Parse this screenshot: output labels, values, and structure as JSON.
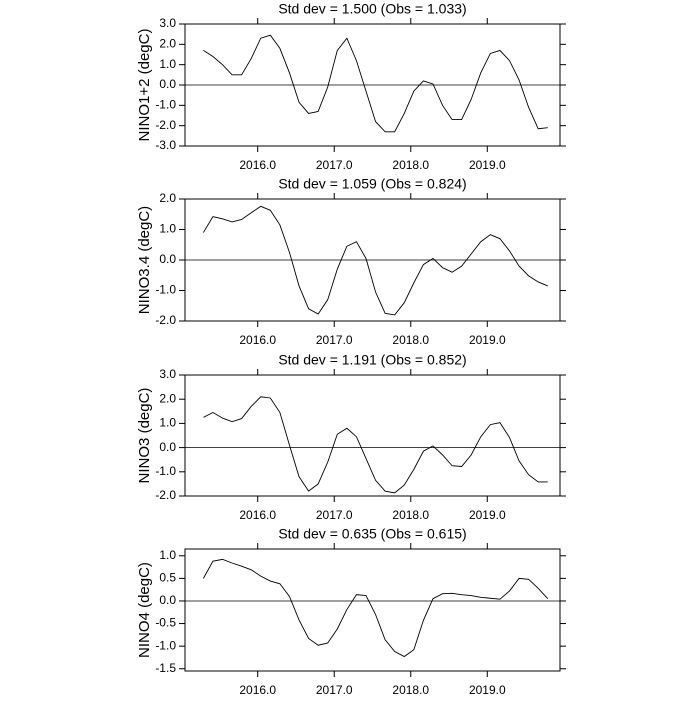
{
  "chart_data": [
    {
      "type": "line",
      "title": "Std dev = 1.500 (Obs = 1.033)",
      "y_label": "NINO1+2 (degC)",
      "color": "#000000",
      "x": [
        2015.29,
        2015.415,
        2015.54,
        2015.665,
        2015.79,
        2015.915,
        2016.04,
        2016.165,
        2016.29,
        2016.415,
        2016.54,
        2016.665,
        2016.79,
        2016.915,
        2017.04,
        2017.165,
        2017.29,
        2017.415,
        2017.54,
        2017.665,
        2017.79,
        2017.915,
        2018.04,
        2018.165,
        2018.29,
        2018.415,
        2018.54,
        2018.665,
        2018.79,
        2018.915,
        2019.04,
        2019.165,
        2019.29,
        2019.415,
        2019.54,
        2019.665,
        2019.79
      ],
      "values": [
        1.7,
        1.4,
        1.0,
        0.5,
        0.5,
        1.3,
        2.3,
        2.45,
        1.8,
        0.6,
        -0.85,
        -1.4,
        -1.3,
        -0.1,
        1.7,
        2.3,
        1.2,
        -0.3,
        -1.8,
        -2.3,
        -2.3,
        -1.4,
        -0.3,
        0.2,
        0.05,
        -1.0,
        -1.7,
        -1.7,
        -0.7,
        0.6,
        1.55,
        1.7,
        1.2,
        0.25,
        -1.1,
        -2.15,
        -2.1
      ],
      "xlim": [
        2015.05,
        2019.95
      ],
      "ylim": [
        -3,
        3
      ],
      "xticks": [
        {
          "value": 2016,
          "label": "2016.0"
        },
        {
          "value": 2017,
          "label": "2017.0"
        },
        {
          "value": 2018,
          "label": "2018.0"
        },
        {
          "value": 2019,
          "label": "2019.0"
        }
      ],
      "yticks": [
        {
          "value": 3,
          "label": "3.0"
        },
        {
          "value": 2,
          "label": "2.0"
        },
        {
          "value": 1,
          "label": "1.0"
        },
        {
          "value": 0,
          "label": "0.0"
        },
        {
          "value": -1,
          "label": "-1.0"
        },
        {
          "value": -2,
          "label": "-2.0"
        },
        {
          "value": -3,
          "label": "-3.0"
        }
      ],
      "reference_line": 0
    },
    {
      "type": "line",
      "title": "Std dev = 1.059 (Obs = 0.824)",
      "y_label": "NINO3.4 (degC)",
      "color": "#000000",
      "x": [
        2015.29,
        2015.415,
        2015.54,
        2015.665,
        2015.79,
        2015.915,
        2016.04,
        2016.165,
        2016.29,
        2016.415,
        2016.54,
        2016.665,
        2016.79,
        2016.915,
        2017.04,
        2017.165,
        2017.29,
        2017.415,
        2017.54,
        2017.665,
        2017.79,
        2017.915,
        2018.04,
        2018.165,
        2018.29,
        2018.415,
        2018.54,
        2018.665,
        2018.79,
        2018.915,
        2019.04,
        2019.165,
        2019.29,
        2019.415,
        2019.54,
        2019.665,
        2019.79
      ],
      "values": [
        0.9,
        1.42,
        1.35,
        1.25,
        1.33,
        1.55,
        1.76,
        1.63,
        1.15,
        0.25,
        -0.85,
        -1.6,
        -1.77,
        -1.3,
        -0.3,
        0.45,
        0.6,
        0.05,
        -1.05,
        -1.75,
        -1.8,
        -1.4,
        -0.75,
        -0.15,
        0.05,
        -0.25,
        -0.4,
        -0.2,
        0.2,
        0.6,
        0.83,
        0.7,
        0.3,
        -0.2,
        -0.52,
        -0.72,
        -0.85
      ],
      "xlim": [
        2015.05,
        2019.95
      ],
      "ylim": [
        -2,
        2
      ],
      "xticks": [
        {
          "value": 2016,
          "label": "2016.0"
        },
        {
          "value": 2017,
          "label": "2017.0"
        },
        {
          "value": 2018,
          "label": "2018.0"
        },
        {
          "value": 2019,
          "label": "2019.0"
        }
      ],
      "yticks": [
        {
          "value": 2,
          "label": "2.0"
        },
        {
          "value": 1,
          "label": "1.0"
        },
        {
          "value": 0,
          "label": "0.0"
        },
        {
          "value": -1,
          "label": "-1.0"
        },
        {
          "value": -2,
          "label": "-2.0"
        }
      ],
      "reference_line": 0
    },
    {
      "type": "line",
      "title": "Std dev = 1.191 (Obs = 0.852)",
      "y_label": "NINO3 (degC)",
      "color": "#000000",
      "x": [
        2015.29,
        2015.415,
        2015.54,
        2015.665,
        2015.79,
        2015.915,
        2016.04,
        2016.165,
        2016.29,
        2016.415,
        2016.54,
        2016.665,
        2016.79,
        2016.915,
        2017.04,
        2017.165,
        2017.29,
        2017.415,
        2017.54,
        2017.665,
        2017.79,
        2017.915,
        2018.04,
        2018.165,
        2018.29,
        2018.415,
        2018.54,
        2018.665,
        2018.79,
        2018.915,
        2019.04,
        2019.165,
        2019.29,
        2019.415,
        2019.54,
        2019.665,
        2019.79
      ],
      "values": [
        1.25,
        1.45,
        1.22,
        1.07,
        1.2,
        1.7,
        2.1,
        2.05,
        1.45,
        0.1,
        -1.2,
        -1.8,
        -1.5,
        -0.6,
        0.55,
        0.8,
        0.45,
        -0.45,
        -1.35,
        -1.8,
        -1.87,
        -1.55,
        -0.9,
        -0.15,
        0.07,
        -0.3,
        -0.75,
        -0.78,
        -0.3,
        0.45,
        0.95,
        1.03,
        0.42,
        -0.55,
        -1.12,
        -1.42,
        -1.42
      ],
      "xlim": [
        2015.05,
        2019.95
      ],
      "ylim": [
        -2,
        3
      ],
      "xticks": [
        {
          "value": 2016,
          "label": "2016.0"
        },
        {
          "value": 2017,
          "label": "2017.0"
        },
        {
          "value": 2018,
          "label": "2018.0"
        },
        {
          "value": 2019,
          "label": "2019.0"
        }
      ],
      "yticks": [
        {
          "value": 3,
          "label": "3.0"
        },
        {
          "value": 2,
          "label": "2.0"
        },
        {
          "value": 1,
          "label": "1.0"
        },
        {
          "value": 0,
          "label": "0.0"
        },
        {
          "value": -1,
          "label": "-1.0"
        },
        {
          "value": -2,
          "label": "-2.0"
        }
      ],
      "reference_line": 0
    },
    {
      "type": "line",
      "title": "Std dev = 0.635 (Obs = 0.615)",
      "y_label": "NINO4 (degC)",
      "color": "#000000",
      "x": [
        2015.29,
        2015.415,
        2015.54,
        2015.665,
        2015.79,
        2015.915,
        2016.04,
        2016.165,
        2016.29,
        2016.415,
        2016.54,
        2016.665,
        2016.79,
        2016.915,
        2017.04,
        2017.165,
        2017.29,
        2017.415,
        2017.54,
        2017.665,
        2017.79,
        2017.915,
        2018.04,
        2018.165,
        2018.29,
        2018.415,
        2018.54,
        2018.665,
        2018.79,
        2018.915,
        2019.04,
        2019.165,
        2019.29,
        2019.415,
        2019.54,
        2019.665,
        2019.79
      ],
      "values": [
        0.5,
        0.88,
        0.92,
        0.84,
        0.77,
        0.69,
        0.55,
        0.44,
        0.38,
        0.1,
        -0.42,
        -0.83,
        -0.98,
        -0.93,
        -0.62,
        -0.19,
        0.14,
        0.12,
        -0.3,
        -0.86,
        -1.12,
        -1.23,
        -1.08,
        -0.43,
        0.05,
        0.16,
        0.17,
        0.14,
        0.12,
        0.08,
        0.06,
        0.04,
        0.22,
        0.5,
        0.48,
        0.28,
        0.05
      ],
      "xlim": [
        2015.05,
        2019.95
      ],
      "ylim": [
        -1.55,
        1.15
      ],
      "xticks": [
        {
          "value": 2016,
          "label": "2016.0"
        },
        {
          "value": 2017,
          "label": "2017.0"
        },
        {
          "value": 2018,
          "label": "2018.0"
        },
        {
          "value": 2019,
          "label": "2019.0"
        }
      ],
      "yticks": [
        {
          "value": 1,
          "label": "1.0"
        },
        {
          "value": 0.5,
          "label": "0.5"
        },
        {
          "value": 0,
          "label": "0.0"
        },
        {
          "value": -0.5,
          "label": "-0.5"
        },
        {
          "value": -1,
          "label": "-1.0"
        },
        {
          "value": -1.5,
          "label": "-1.5"
        }
      ],
      "reference_line": 0
    }
  ]
}
